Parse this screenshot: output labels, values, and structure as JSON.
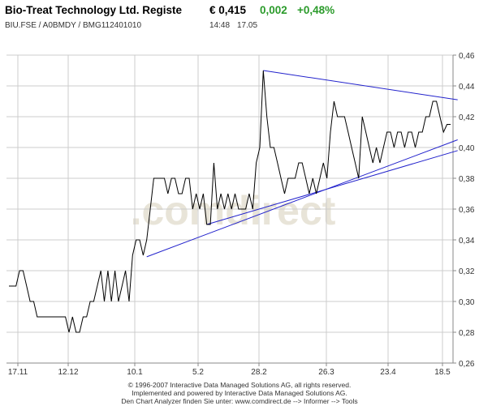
{
  "header": {
    "title": "Bio-Treat Technology Ltd. Registe",
    "price": "€ 0,415",
    "change": "0,002",
    "change_pct": "+0,48%",
    "identifiers": "BIU.FSE  /  A0BMDY  /  BMG112401010",
    "time": "14:48",
    "date": "17.05"
  },
  "watermark": ".comdirect",
  "footer": {
    "line1": "© 1996-2007 Interactive Data Managed Solutions AG, all rights reserved.",
    "line2": "Implemented and powered by Interactive Data Managed Solutions AG.",
    "line3": "Den Chart Analyzer finden Sie unter: www.comdirect.de --> Informer --> Tools"
  },
  "colors": {
    "price_line": "#000000",
    "trend_lines": "#2222cc",
    "grid": "#cccccc",
    "positive": "#2b9b2b"
  },
  "chart_data": {
    "type": "line",
    "x_ticks": [
      "17.11",
      "12.12",
      "10.1",
      "5.2",
      "28.2",
      "26.3",
      "23.4",
      "18.5"
    ],
    "y_ticks": [
      "0,46",
      "0,44",
      "0,42",
      "0,40",
      "0,38",
      "0,36",
      "0,34",
      "0,32",
      "0,30",
      "0,28",
      "0,26"
    ],
    "ylim": [
      0.26,
      0.46
    ],
    "grid": true,
    "series": [
      {
        "values": [
          0.31,
          0.31,
          0.31,
          0.32,
          0.32,
          0.31,
          0.3,
          0.3,
          0.29,
          0.29,
          0.29,
          0.29,
          0.29,
          0.29,
          0.29,
          0.29,
          0.29,
          0.28,
          0.29,
          0.28,
          0.28,
          0.29,
          0.29,
          0.3,
          0.3,
          0.31,
          0.32,
          0.3,
          0.32,
          0.3,
          0.32,
          0.3,
          0.31,
          0.32,
          0.3,
          0.33,
          0.34,
          0.34,
          0.33,
          0.34,
          0.36,
          0.38,
          0.38,
          0.38,
          0.38,
          0.37,
          0.38,
          0.38,
          0.37,
          0.37,
          0.38,
          0.38,
          0.36,
          0.37,
          0.36,
          0.37,
          0.35,
          0.35,
          0.39,
          0.36,
          0.37,
          0.36,
          0.37,
          0.36,
          0.37,
          0.36,
          0.36,
          0.36,
          0.37,
          0.36,
          0.39,
          0.4,
          0.45,
          0.42,
          0.4,
          0.4,
          0.39,
          0.38,
          0.37,
          0.38,
          0.38,
          0.38,
          0.39,
          0.39,
          0.38,
          0.37,
          0.38,
          0.37,
          0.38,
          0.39,
          0.38,
          0.41,
          0.43,
          0.42,
          0.42,
          0.42,
          0.41,
          0.4,
          0.39,
          0.38,
          0.42,
          0.41,
          0.4,
          0.39,
          0.4,
          0.39,
          0.4,
          0.41,
          0.41,
          0.4,
          0.41,
          0.41,
          0.4,
          0.41,
          0.41,
          0.4,
          0.41,
          0.41,
          0.42,
          0.42,
          0.43,
          0.43,
          0.42,
          0.41,
          0.415,
          0.415
        ]
      }
    ],
    "trend_lines": [
      {
        "from": [
          72,
          0.45
        ],
        "to": [
          127,
          0.431
        ]
      },
      {
        "from": [
          39,
          0.329
        ],
        "to": [
          127,
          0.405
        ]
      },
      {
        "from": [
          56,
          0.35
        ],
        "to": [
          127,
          0.398
        ]
      }
    ]
  }
}
